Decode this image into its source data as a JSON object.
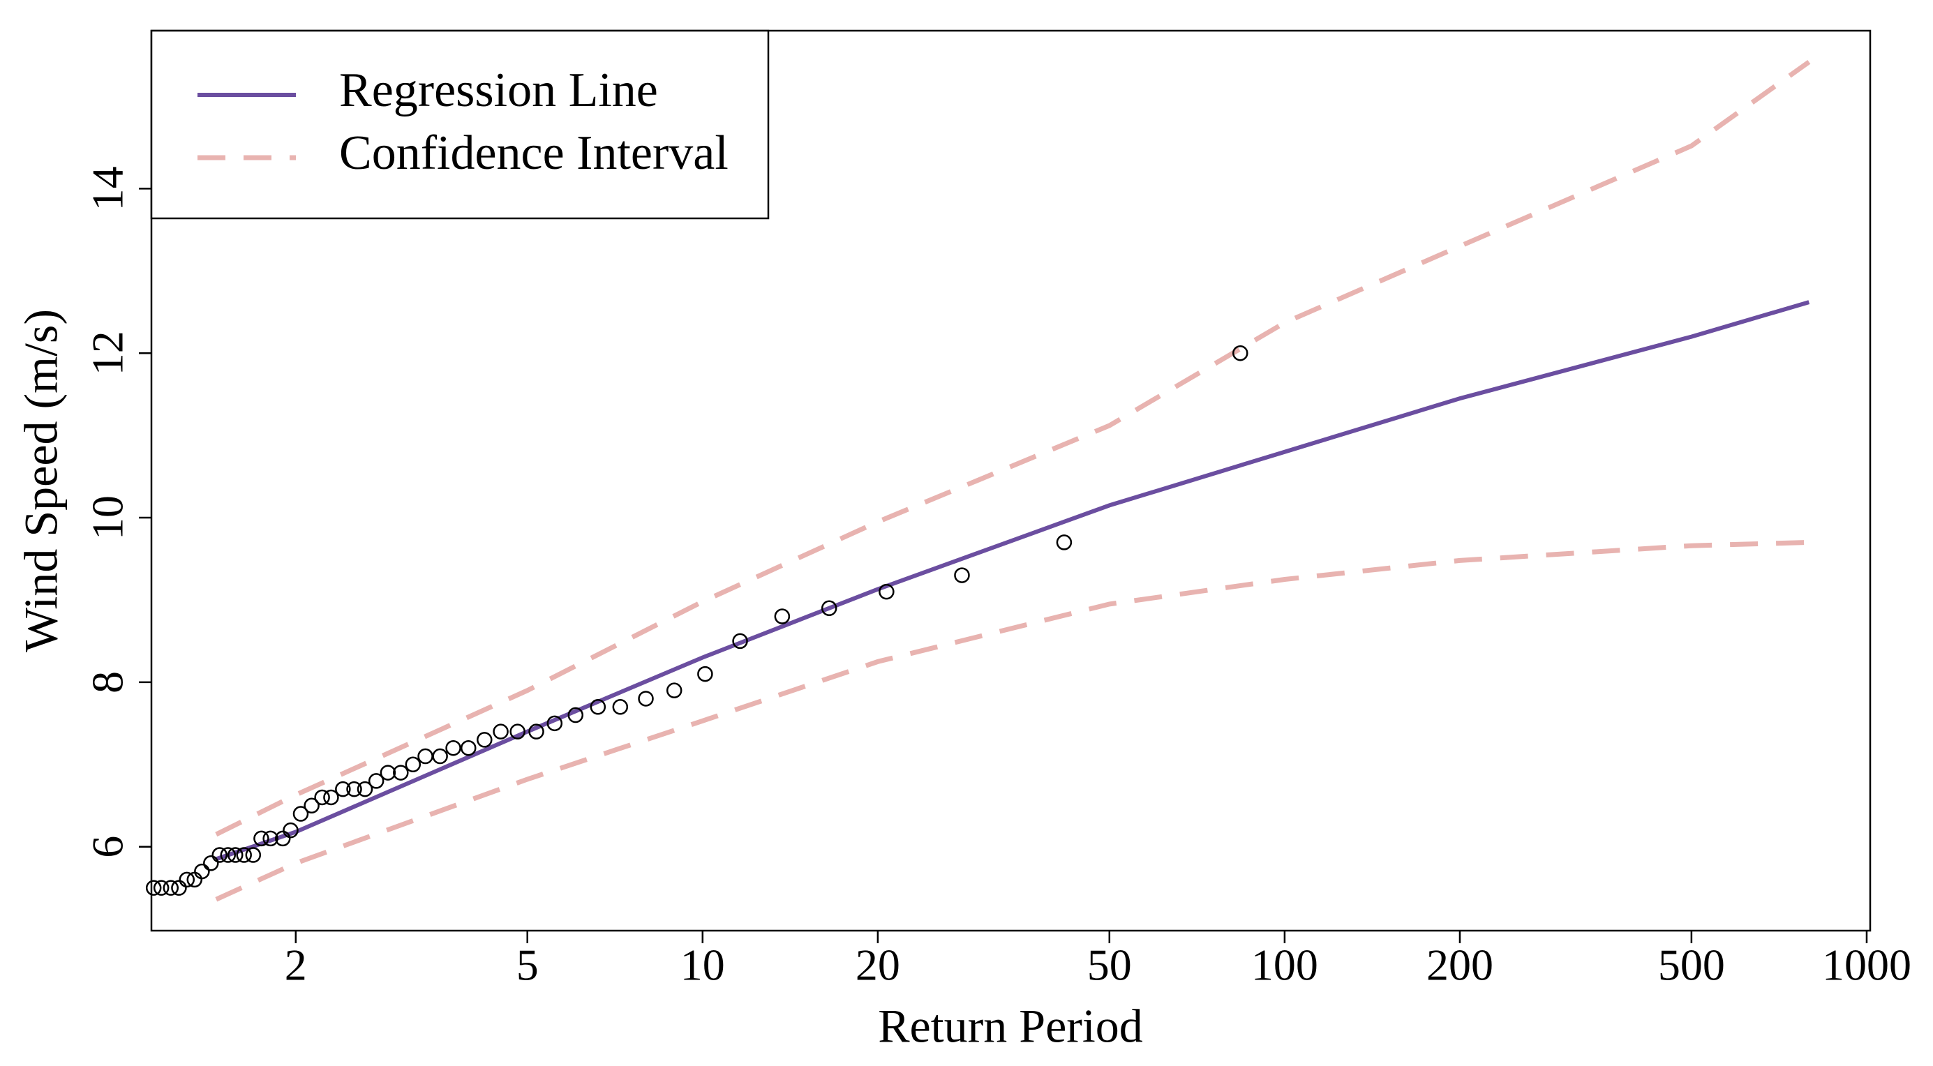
{
  "chart_data": {
    "type": "line",
    "x_label": "Return Period",
    "y_label": "Wind Speed (m/s)",
    "xscale": "log",
    "xlim": [
      1.13,
      1014
    ],
    "ylim": [
      4.98,
      15.92
    ],
    "xticks": [
      2,
      5,
      10,
      20,
      50,
      100,
      200,
      500,
      1000
    ],
    "yticks": [
      6,
      8,
      10,
      12,
      14
    ],
    "grid": false,
    "legend": "upper left",
    "series": [
      {
        "name": "Regression Line",
        "color": "#6b4ea0",
        "style": "solid",
        "x": [
          1.46,
          2,
          5,
          10,
          20,
          50,
          100,
          200,
          500,
          796
        ],
        "values": [
          5.85,
          6.18,
          7.4,
          8.3,
          9.13,
          10.15,
          10.8,
          11.45,
          12.2,
          12.62
        ]
      },
      {
        "name": "Confidence Interval",
        "color": "#e8b3b0",
        "style": "dashed",
        "x": [
          1.46,
          2,
          5,
          10,
          20,
          50,
          100,
          200,
          500,
          796
        ],
        "upper": [
          6.15,
          6.63,
          7.9,
          8.98,
          9.95,
          11.12,
          12.37,
          13.3,
          14.52,
          15.54
        ],
        "lower": [
          5.36,
          5.8,
          6.82,
          7.53,
          8.25,
          8.95,
          9.25,
          9.48,
          9.66,
          9.7
        ]
      },
      {
        "color": "#000000",
        "style": "points",
        "x": [
          1.14,
          1.175,
          1.22,
          1.26,
          1.3,
          1.34,
          1.38,
          1.43,
          1.48,
          1.53,
          1.575,
          1.63,
          1.69,
          1.745,
          1.81,
          1.9,
          1.96,
          2.04,
          2.13,
          2.22,
          2.3,
          2.41,
          2.52,
          2.63,
          2.75,
          2.88,
          3.03,
          3.18,
          3.34,
          3.54,
          3.73,
          3.96,
          4.22,
          4.5,
          4.81,
          5.18,
          5.57,
          6.05,
          6.61,
          7.22,
          7.99,
          8.94,
          10.1,
          11.6,
          13.7,
          16.5,
          20.7,
          27.9,
          41.8,
          83.9
        ],
        "values": [
          5.5,
          5.5,
          5.5,
          5.5,
          5.6,
          5.6,
          5.7,
          5.8,
          5.9,
          5.9,
          5.9,
          5.9,
          5.9,
          6.1,
          6.1,
          6.1,
          6.2,
          6.4,
          6.5,
          6.6,
          6.6,
          6.7,
          6.7,
          6.7,
          6.8,
          6.9,
          6.9,
          7.0,
          7.1,
          7.1,
          7.2,
          7.2,
          7.3,
          7.4,
          7.4,
          7.4,
          7.5,
          7.6,
          7.7,
          7.7,
          7.8,
          7.9,
          8.1,
          8.5,
          8.8,
          8.9,
          9.1,
          9.3,
          9.7,
          12.0
        ]
      }
    ]
  }
}
